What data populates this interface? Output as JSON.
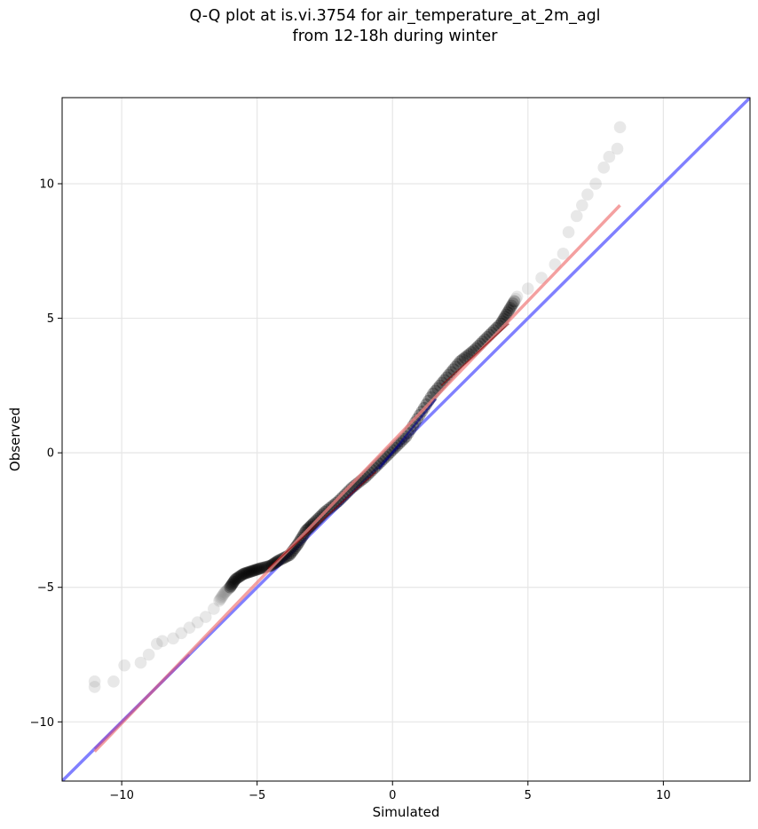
{
  "chart_data": {
    "type": "scatter",
    "title": [
      "Q-Q plot at is.vi.3754 for air_temperature_at_2m_agl",
      "from 12-18h during winter"
    ],
    "xlabel": "Simulated",
    "ylabel": "Observed",
    "xlim": [
      -12.2,
      13.2
    ],
    "ylim": [
      -12.2,
      13.2
    ],
    "xticks": [
      -10,
      -5,
      0,
      5,
      10
    ],
    "yticks": [
      -10,
      -5,
      0,
      5,
      10
    ],
    "xtick_labels": [
      "−10",
      "−5",
      "0",
      "5",
      "10"
    ],
    "ytick_labels": [
      "−10",
      "−5",
      "0",
      "5",
      "10"
    ],
    "grid": true,
    "colors": {
      "tail_points": "#808080",
      "core_points": "#000000",
      "fit_line": "#f08080",
      "one_to_one_line": "#8080ff",
      "inner_red": "#8b0000",
      "inner_blue": "#00008b"
    },
    "quantiles": {
      "x": [
        -11.0,
        -11.0,
        -10.3,
        -9.9,
        -9.3,
        -9.0,
        -8.7,
        -8.5,
        -8.1,
        -7.8,
        -7.5,
        -7.2,
        -6.9,
        -6.6,
        -6.4,
        -6.2,
        -6.0,
        -5.8,
        -5.5,
        -5.2,
        -4.9,
        -4.5,
        -4.2,
        -3.8,
        -3.5,
        -3.2,
        -2.9,
        -2.5,
        -2.0,
        -1.5,
        -1.0,
        -0.5,
        0.0,
        0.5,
        1.0,
        1.5,
        2.0,
        2.5,
        3.0,
        3.5,
        4.0,
        4.3,
        4.6,
        5.0,
        5.5,
        6.0,
        6.3,
        6.5,
        6.8,
        7.0,
        7.2,
        7.5,
        7.8,
        8.0,
        8.3,
        8.4
      ],
      "y": [
        -8.7,
        -8.5,
        -8.5,
        -7.9,
        -7.8,
        -7.5,
        -7.1,
        -7.0,
        -6.9,
        -6.7,
        -6.5,
        -6.3,
        -6.1,
        -5.8,
        -5.5,
        -5.2,
        -5.0,
        -4.7,
        -4.5,
        -4.4,
        -4.3,
        -4.2,
        -4.0,
        -3.8,
        -3.4,
        -2.9,
        -2.6,
        -2.2,
        -1.8,
        -1.3,
        -0.9,
        -0.4,
        0.1,
        0.6,
        1.4,
        2.2,
        2.8,
        3.4,
        3.8,
        4.3,
        4.8,
        5.3,
        5.8,
        6.1,
        6.5,
        7.0,
        7.4,
        8.2,
        8.8,
        9.2,
        9.6,
        10.0,
        10.6,
        11.0,
        11.3,
        12.1
      ]
    },
    "fit_line": {
      "x": [
        -11.0,
        8.4
      ],
      "y": [
        -11.1,
        9.2
      ]
    },
    "one_to_one_line": {
      "x": [
        -12.2,
        13.2
      ],
      "y": [
        -12.2,
        13.2
      ]
    }
  }
}
